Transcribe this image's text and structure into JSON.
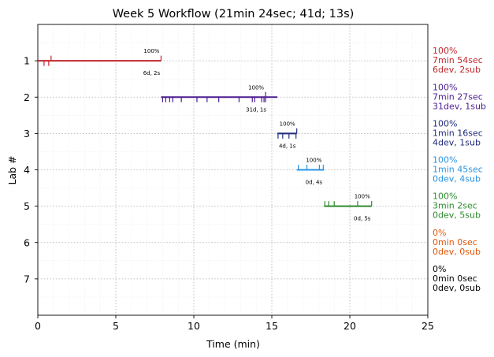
{
  "chart_data": {
    "type": "timeline",
    "title": "Week 5 Workflow (21min 24sec; 41d; 13s)",
    "xlabel": "Time (min)",
    "ylabel": "Lab #",
    "xlim": [
      0,
      25
    ],
    "ylim": [
      8,
      0
    ],
    "xticks": [
      0,
      5,
      10,
      15,
      20,
      25
    ],
    "yticks": [
      1,
      2,
      3,
      4,
      5,
      6,
      7
    ],
    "grid": true,
    "labs": [
      {
        "lab": 1,
        "color": "#c1272d",
        "start": 0.0,
        "end": 7.9,
        "pct_label": "100%",
        "count_label": "6d, 2s",
        "dev_ticks": [
          0.4,
          0.7
        ],
        "sub_ticks": [
          0.85,
          7.9
        ],
        "side": [
          "100%",
          "7min 54sec",
          "6dev, 2sub"
        ]
      },
      {
        "lab": 2,
        "color": "#4b1d91",
        "start": 7.9,
        "end": 15.35,
        "pct_label": "100%",
        "count_label": "31d, 1s",
        "dev_ticks": [
          8.0,
          8.2,
          8.45,
          8.65,
          9.2,
          10.2,
          10.85,
          11.6,
          12.9,
          13.75,
          13.9,
          14.35,
          14.5,
          14.6
        ],
        "sub_ticks": [
          14.6
        ],
        "side": [
          "100%",
          "7min 27sec",
          "31dev, 1sub"
        ]
      },
      {
        "lab": 3,
        "color": "#1f2a7a",
        "start": 15.35,
        "end": 16.6,
        "pct_label": "100%",
        "count_label": "4d, 1s",
        "dev_ticks": [
          15.4,
          15.7,
          16.1,
          16.55
        ],
        "sub_ticks": [
          16.6
        ],
        "side": [
          "100%",
          "1min 16sec",
          "4dev, 1sub"
        ]
      },
      {
        "lab": 4,
        "color": "#2b94e3",
        "start": 16.6,
        "end": 18.35,
        "pct_label": "100%",
        "count_label": "0d, 4s",
        "dev_ticks": [],
        "sub_ticks": [
          16.7,
          17.25,
          18.05,
          18.3
        ],
        "side": [
          "100%",
          "1min 45sec",
          "0dev, 4sub"
        ]
      },
      {
        "lab": 5,
        "color": "#2e8b2e",
        "start": 18.35,
        "end": 21.4,
        "pct_label": "100%",
        "count_label": "0d, 5s",
        "dev_ticks": [],
        "sub_ticks": [
          18.4,
          18.65,
          19.0,
          20.5,
          21.4
        ],
        "side": [
          "100%",
          "3min 2sec",
          "0dev, 5sub"
        ]
      },
      {
        "lab": 6,
        "color": "#e0560a",
        "start": null,
        "end": null,
        "pct_label": "",
        "count_label": "",
        "dev_ticks": [],
        "sub_ticks": [],
        "side": [
          "0%",
          "0min 0sec",
          "0dev, 0sub"
        ]
      },
      {
        "lab": 7,
        "color": "#000000",
        "start": null,
        "end": null,
        "pct_label": "",
        "count_label": "",
        "dev_ticks": [],
        "sub_ticks": [],
        "side": [
          "0%",
          "0min 0sec",
          "0dev, 0sub"
        ]
      }
    ]
  }
}
